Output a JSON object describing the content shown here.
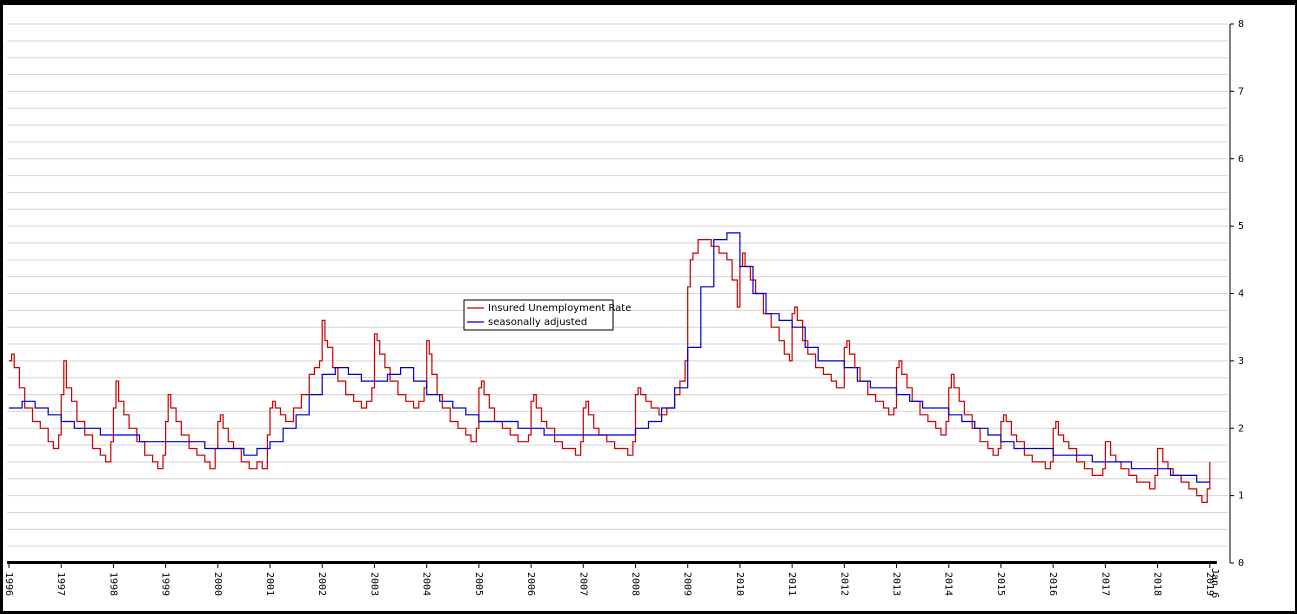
{
  "chart_data": {
    "type": "line",
    "title": "",
    "xlabel": "",
    "ylabel": "",
    "xlim": [
      1996,
      2019.1
    ],
    "ylim": [
      0,
      8
    ],
    "y_ticks": [
      "0",
      "1",
      "2",
      "3",
      "4",
      "5",
      "6",
      "7",
      "8"
    ],
    "x_ticks": [
      "1996",
      "1997",
      "1998",
      "1999",
      "2000",
      "2001",
      "2002",
      "2003",
      "2004",
      "2005",
      "2006",
      "2007",
      "2008",
      "2009",
      "2010",
      "2011",
      "2012",
      "2013",
      "2014",
      "2015",
      "2016",
      "2017",
      "2018",
      "2019"
    ],
    "x_end_label": "Jan 6",
    "grid": true,
    "legend": {
      "placement": "center"
    },
    "series": [
      {
        "name": "Insured Unemployment Rate",
        "color": "#cc0000",
        "x": [
          1996.0,
          1996.05,
          1996.1,
          1996.2,
          1996.3,
          1996.45,
          1996.6,
          1996.75,
          1996.85,
          1996.95,
          1997.0,
          1997.05,
          1997.1,
          1997.2,
          1997.3,
          1997.45,
          1997.6,
          1997.75,
          1997.85,
          1997.95,
          1998.0,
          1998.05,
          1998.1,
          1998.2,
          1998.3,
          1998.45,
          1998.6,
          1998.75,
          1998.85,
          1998.95,
          1999.0,
          1999.05,
          1999.1,
          1999.2,
          1999.3,
          1999.45,
          1999.6,
          1999.75,
          1999.85,
          1999.95,
          2000.0,
          2000.05,
          2000.1,
          2000.2,
          2000.3,
          2000.45,
          2000.6,
          2000.75,
          2000.85,
          2000.95,
          2001.0,
          2001.05,
          2001.1,
          2001.2,
          2001.3,
          2001.45,
          2001.6,
          2001.75,
          2001.85,
          2001.95,
          2002.0,
          2002.05,
          2002.1,
          2002.2,
          2002.3,
          2002.45,
          2002.6,
          2002.75,
          2002.85,
          2002.95,
          2003.0,
          2003.05,
          2003.1,
          2003.2,
          2003.3,
          2003.45,
          2003.6,
          2003.75,
          2003.85,
          2003.95,
          2004.0,
          2004.05,
          2004.1,
          2004.2,
          2004.3,
          2004.45,
          2004.6,
          2004.75,
          2004.85,
          2004.95,
          2005.0,
          2005.05,
          2005.1,
          2005.2,
          2005.3,
          2005.45,
          2005.6,
          2005.75,
          2005.85,
          2005.95,
          2006.0,
          2006.05,
          2006.1,
          2006.2,
          2006.3,
          2006.45,
          2006.6,
          2006.75,
          2006.85,
          2006.95,
          2007.0,
          2007.05,
          2007.1,
          2007.2,
          2007.3,
          2007.45,
          2007.6,
          2007.75,
          2007.85,
          2007.95,
          2008.0,
          2008.05,
          2008.1,
          2008.2,
          2008.3,
          2008.45,
          2008.6,
          2008.75,
          2008.85,
          2008.95,
          2009.0,
          2009.05,
          2009.1,
          2009.2,
          2009.3,
          2009.45,
          2009.6,
          2009.75,
          2009.85,
          2009.95,
          2010.0,
          2010.05,
          2010.1,
          2010.2,
          2010.3,
          2010.45,
          2010.6,
          2010.75,
          2010.85,
          2010.95,
          2011.0,
          2011.05,
          2011.1,
          2011.2,
          2011.3,
          2011.45,
          2011.6,
          2011.75,
          2011.85,
          2011.95,
          2012.0,
          2012.05,
          2012.1,
          2012.2,
          2012.3,
          2012.45,
          2012.6,
          2012.75,
          2012.85,
          2012.95,
          2013.0,
          2013.05,
          2013.1,
          2013.2,
          2013.3,
          2013.45,
          2013.6,
          2013.75,
          2013.85,
          2013.95,
          2014.0,
          2014.05,
          2014.1,
          2014.2,
          2014.3,
          2014.45,
          2014.6,
          2014.75,
          2014.85,
          2014.95,
          2015.0,
          2015.05,
          2015.1,
          2015.2,
          2015.3,
          2015.45,
          2015.6,
          2015.75,
          2015.85,
          2015.95,
          2016.0,
          2016.05,
          2016.1,
          2016.2,
          2016.3,
          2016.45,
          2016.6,
          2016.75,
          2016.85,
          2016.95,
          2017.0,
          2017.05,
          2017.1,
          2017.2,
          2017.3,
          2017.45,
          2017.6,
          2017.75,
          2017.85,
          2017.95,
          2018.0,
          2018.05,
          2018.1,
          2018.2,
          2018.3,
          2018.45,
          2018.6,
          2018.75,
          2018.85,
          2018.95,
          2019.0
        ],
        "values": [
          3.0,
          3.1,
          2.9,
          2.6,
          2.3,
          2.1,
          2.0,
          1.8,
          1.7,
          1.9,
          2.5,
          3.0,
          2.6,
          2.4,
          2.1,
          1.9,
          1.7,
          1.6,
          1.5,
          1.8,
          2.3,
          2.7,
          2.4,
          2.2,
          2.0,
          1.8,
          1.6,
          1.5,
          1.4,
          1.6,
          2.1,
          2.5,
          2.3,
          2.1,
          1.9,
          1.7,
          1.6,
          1.5,
          1.4,
          1.7,
          2.1,
          2.2,
          2.0,
          1.8,
          1.7,
          1.5,
          1.4,
          1.5,
          1.4,
          1.9,
          2.3,
          2.4,
          2.3,
          2.2,
          2.1,
          2.3,
          2.5,
          2.8,
          2.9,
          3.0,
          3.6,
          3.3,
          3.2,
          2.9,
          2.7,
          2.5,
          2.4,
          2.3,
          2.4,
          2.6,
          3.4,
          3.3,
          3.1,
          2.9,
          2.7,
          2.5,
          2.4,
          2.3,
          2.4,
          2.6,
          3.3,
          3.1,
          2.8,
          2.5,
          2.3,
          2.1,
          2.0,
          1.9,
          1.8,
          2.0,
          2.6,
          2.7,
          2.5,
          2.3,
          2.1,
          2.0,
          1.9,
          1.8,
          1.8,
          1.9,
          2.4,
          2.5,
          2.3,
          2.1,
          2.0,
          1.8,
          1.7,
          1.7,
          1.6,
          1.8,
          2.3,
          2.4,
          2.2,
          2.0,
          1.9,
          1.8,
          1.7,
          1.7,
          1.6,
          1.8,
          2.5,
          2.6,
          2.5,
          2.4,
          2.3,
          2.2,
          2.3,
          2.5,
          2.7,
          3.0,
          4.1,
          4.5,
          4.6,
          4.8,
          4.8,
          4.7,
          4.6,
          4.5,
          4.2,
          3.8,
          4.4,
          4.6,
          4.4,
          4.2,
          4.0,
          3.7,
          3.5,
          3.3,
          3.1,
          3.0,
          3.7,
          3.8,
          3.6,
          3.3,
          3.1,
          2.9,
          2.8,
          2.7,
          2.6,
          2.6,
          3.2,
          3.3,
          3.1,
          2.9,
          2.7,
          2.5,
          2.4,
          2.3,
          2.2,
          2.3,
          2.9,
          3.0,
          2.8,
          2.6,
          2.4,
          2.2,
          2.1,
          2.0,
          1.9,
          2.1,
          2.6,
          2.8,
          2.6,
          2.4,
          2.2,
          2.0,
          1.8,
          1.7,
          1.6,
          1.7,
          2.1,
          2.2,
          2.1,
          1.9,
          1.8,
          1.6,
          1.5,
          1.5,
          1.4,
          1.5,
          2.0,
          2.1,
          1.9,
          1.8,
          1.7,
          1.5,
          1.4,
          1.3,
          1.3,
          1.4,
          1.8,
          1.8,
          1.6,
          1.5,
          1.4,
          1.3,
          1.2,
          1.2,
          1.1,
          1.3,
          1.7,
          1.7,
          1.5,
          1.4,
          1.3,
          1.2,
          1.1,
          1.0,
          0.9,
          1.1,
          1.5
        ]
      },
      {
        "name": "seasonally adjusted",
        "color": "#0000cc",
        "x": [
          1996.0,
          1996.25,
          1996.5,
          1996.75,
          1997.0,
          1997.25,
          1997.5,
          1997.75,
          1998.0,
          1998.25,
          1998.5,
          1998.75,
          1999.0,
          1999.25,
          1999.5,
          1999.75,
          2000.0,
          2000.25,
          2000.5,
          2000.75,
          2001.0,
          2001.25,
          2001.5,
          2001.75,
          2002.0,
          2002.25,
          2002.5,
          2002.75,
          2003.0,
          2003.25,
          2003.5,
          2003.75,
          2004.0,
          2004.25,
          2004.5,
          2004.75,
          2005.0,
          2005.25,
          2005.5,
          2005.75,
          2006.0,
          2006.25,
          2006.5,
          2006.75,
          2007.0,
          2007.25,
          2007.5,
          2007.75,
          2008.0,
          2008.25,
          2008.5,
          2008.75,
          2009.0,
          2009.25,
          2009.5,
          2009.75,
          2010.0,
          2010.25,
          2010.5,
          2010.75,
          2011.0,
          2011.25,
          2011.5,
          2011.75,
          2012.0,
          2012.25,
          2012.5,
          2012.75,
          2013.0,
          2013.25,
          2013.5,
          2013.75,
          2014.0,
          2014.25,
          2014.5,
          2014.75,
          2015.0,
          2015.25,
          2015.5,
          2015.75,
          2016.0,
          2016.25,
          2016.5,
          2016.75,
          2017.0,
          2017.25,
          2017.5,
          2017.75,
          2018.0,
          2018.25,
          2018.5,
          2018.75,
          2019.0
        ],
        "values": [
          2.3,
          2.4,
          2.3,
          2.2,
          2.1,
          2.0,
          2.0,
          1.9,
          1.9,
          1.9,
          1.8,
          1.8,
          1.8,
          1.8,
          1.8,
          1.7,
          1.7,
          1.7,
          1.6,
          1.7,
          1.8,
          2.0,
          2.2,
          2.5,
          2.8,
          2.9,
          2.8,
          2.7,
          2.7,
          2.8,
          2.9,
          2.7,
          2.5,
          2.4,
          2.3,
          2.2,
          2.1,
          2.1,
          2.1,
          2.0,
          2.0,
          1.9,
          1.9,
          1.9,
          1.9,
          1.9,
          1.9,
          1.9,
          2.0,
          2.1,
          2.3,
          2.6,
          3.2,
          4.1,
          4.8,
          4.9,
          4.4,
          4.0,
          3.7,
          3.6,
          3.5,
          3.2,
          3.0,
          3.0,
          2.9,
          2.7,
          2.6,
          2.6,
          2.5,
          2.4,
          2.3,
          2.3,
          2.2,
          2.1,
          2.0,
          1.9,
          1.8,
          1.7,
          1.7,
          1.7,
          1.6,
          1.6,
          1.6,
          1.5,
          1.5,
          1.5,
          1.4,
          1.4,
          1.4,
          1.3,
          1.3,
          1.2,
          1.2
        ]
      }
    ]
  }
}
